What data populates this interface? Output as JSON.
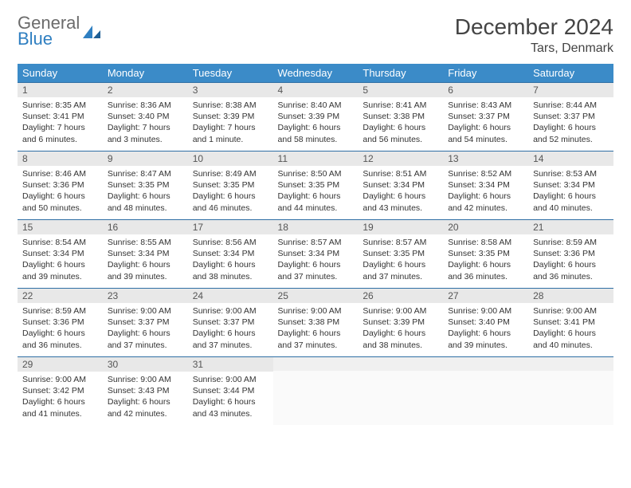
{
  "logo": {
    "word1": "General",
    "word2": "Blue",
    "accent_color": "#2f7fc1",
    "gray_color": "#6b6b6b"
  },
  "header": {
    "month_title": "December 2024",
    "location": "Tars, Denmark"
  },
  "calendar": {
    "header_bg": "#3b8bc8",
    "header_fg": "#ffffff",
    "rule_color": "#2f6fa5",
    "day_bg": "#e8e8e8",
    "weekdays": [
      "Sunday",
      "Monday",
      "Tuesday",
      "Wednesday",
      "Thursday",
      "Friday",
      "Saturday"
    ],
    "weeks": [
      [
        {
          "n": "1",
          "sunrise": "Sunrise: 8:35 AM",
          "sunset": "Sunset: 3:41 PM",
          "daylight": "Daylight: 7 hours and 6 minutes."
        },
        {
          "n": "2",
          "sunrise": "Sunrise: 8:36 AM",
          "sunset": "Sunset: 3:40 PM",
          "daylight": "Daylight: 7 hours and 3 minutes."
        },
        {
          "n": "3",
          "sunrise": "Sunrise: 8:38 AM",
          "sunset": "Sunset: 3:39 PM",
          "daylight": "Daylight: 7 hours and 1 minute."
        },
        {
          "n": "4",
          "sunrise": "Sunrise: 8:40 AM",
          "sunset": "Sunset: 3:39 PM",
          "daylight": "Daylight: 6 hours and 58 minutes."
        },
        {
          "n": "5",
          "sunrise": "Sunrise: 8:41 AM",
          "sunset": "Sunset: 3:38 PM",
          "daylight": "Daylight: 6 hours and 56 minutes."
        },
        {
          "n": "6",
          "sunrise": "Sunrise: 8:43 AM",
          "sunset": "Sunset: 3:37 PM",
          "daylight": "Daylight: 6 hours and 54 minutes."
        },
        {
          "n": "7",
          "sunrise": "Sunrise: 8:44 AM",
          "sunset": "Sunset: 3:37 PM",
          "daylight": "Daylight: 6 hours and 52 minutes."
        }
      ],
      [
        {
          "n": "8",
          "sunrise": "Sunrise: 8:46 AM",
          "sunset": "Sunset: 3:36 PM",
          "daylight": "Daylight: 6 hours and 50 minutes."
        },
        {
          "n": "9",
          "sunrise": "Sunrise: 8:47 AM",
          "sunset": "Sunset: 3:35 PM",
          "daylight": "Daylight: 6 hours and 48 minutes."
        },
        {
          "n": "10",
          "sunrise": "Sunrise: 8:49 AM",
          "sunset": "Sunset: 3:35 PM",
          "daylight": "Daylight: 6 hours and 46 minutes."
        },
        {
          "n": "11",
          "sunrise": "Sunrise: 8:50 AM",
          "sunset": "Sunset: 3:35 PM",
          "daylight": "Daylight: 6 hours and 44 minutes."
        },
        {
          "n": "12",
          "sunrise": "Sunrise: 8:51 AM",
          "sunset": "Sunset: 3:34 PM",
          "daylight": "Daylight: 6 hours and 43 minutes."
        },
        {
          "n": "13",
          "sunrise": "Sunrise: 8:52 AM",
          "sunset": "Sunset: 3:34 PM",
          "daylight": "Daylight: 6 hours and 42 minutes."
        },
        {
          "n": "14",
          "sunrise": "Sunrise: 8:53 AM",
          "sunset": "Sunset: 3:34 PM",
          "daylight": "Daylight: 6 hours and 40 minutes."
        }
      ],
      [
        {
          "n": "15",
          "sunrise": "Sunrise: 8:54 AM",
          "sunset": "Sunset: 3:34 PM",
          "daylight": "Daylight: 6 hours and 39 minutes."
        },
        {
          "n": "16",
          "sunrise": "Sunrise: 8:55 AM",
          "sunset": "Sunset: 3:34 PM",
          "daylight": "Daylight: 6 hours and 39 minutes."
        },
        {
          "n": "17",
          "sunrise": "Sunrise: 8:56 AM",
          "sunset": "Sunset: 3:34 PM",
          "daylight": "Daylight: 6 hours and 38 minutes."
        },
        {
          "n": "18",
          "sunrise": "Sunrise: 8:57 AM",
          "sunset": "Sunset: 3:34 PM",
          "daylight": "Daylight: 6 hours and 37 minutes."
        },
        {
          "n": "19",
          "sunrise": "Sunrise: 8:57 AM",
          "sunset": "Sunset: 3:35 PM",
          "daylight": "Daylight: 6 hours and 37 minutes."
        },
        {
          "n": "20",
          "sunrise": "Sunrise: 8:58 AM",
          "sunset": "Sunset: 3:35 PM",
          "daylight": "Daylight: 6 hours and 36 minutes."
        },
        {
          "n": "21",
          "sunrise": "Sunrise: 8:59 AM",
          "sunset": "Sunset: 3:36 PM",
          "daylight": "Daylight: 6 hours and 36 minutes."
        }
      ],
      [
        {
          "n": "22",
          "sunrise": "Sunrise: 8:59 AM",
          "sunset": "Sunset: 3:36 PM",
          "daylight": "Daylight: 6 hours and 36 minutes."
        },
        {
          "n": "23",
          "sunrise": "Sunrise: 9:00 AM",
          "sunset": "Sunset: 3:37 PM",
          "daylight": "Daylight: 6 hours and 37 minutes."
        },
        {
          "n": "24",
          "sunrise": "Sunrise: 9:00 AM",
          "sunset": "Sunset: 3:37 PM",
          "daylight": "Daylight: 6 hours and 37 minutes."
        },
        {
          "n": "25",
          "sunrise": "Sunrise: 9:00 AM",
          "sunset": "Sunset: 3:38 PM",
          "daylight": "Daylight: 6 hours and 37 minutes."
        },
        {
          "n": "26",
          "sunrise": "Sunrise: 9:00 AM",
          "sunset": "Sunset: 3:39 PM",
          "daylight": "Daylight: 6 hours and 38 minutes."
        },
        {
          "n": "27",
          "sunrise": "Sunrise: 9:00 AM",
          "sunset": "Sunset: 3:40 PM",
          "daylight": "Daylight: 6 hours and 39 minutes."
        },
        {
          "n": "28",
          "sunrise": "Sunrise: 9:00 AM",
          "sunset": "Sunset: 3:41 PM",
          "daylight": "Daylight: 6 hours and 40 minutes."
        }
      ],
      [
        {
          "n": "29",
          "sunrise": "Sunrise: 9:00 AM",
          "sunset": "Sunset: 3:42 PM",
          "daylight": "Daylight: 6 hours and 41 minutes."
        },
        {
          "n": "30",
          "sunrise": "Sunrise: 9:00 AM",
          "sunset": "Sunset: 3:43 PM",
          "daylight": "Daylight: 6 hours and 42 minutes."
        },
        {
          "n": "31",
          "sunrise": "Sunrise: 9:00 AM",
          "sunset": "Sunset: 3:44 PM",
          "daylight": "Daylight: 6 hours and 43 minutes."
        },
        null,
        null,
        null,
        null
      ]
    ]
  }
}
